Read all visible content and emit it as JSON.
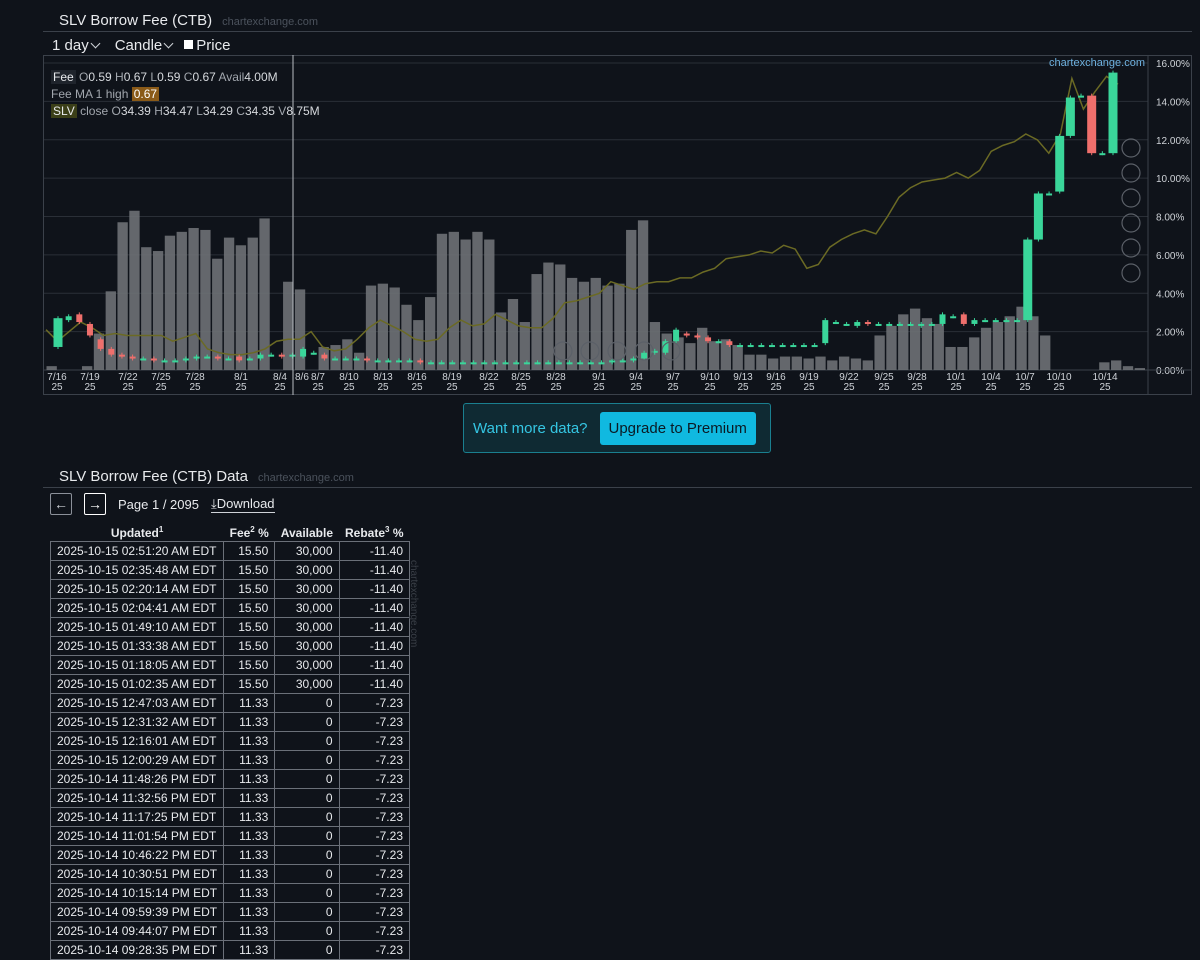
{
  "chart_section": {
    "title": "SLV Borrow Fee (CTB)",
    "source": "chartexchange.com"
  },
  "toolbar": {
    "interval": "1 day",
    "chart_style": "Candle",
    "price_label": "Price"
  },
  "legend": {
    "fee_tag": "Fee",
    "fee_ohlc": {
      "o": "0.59",
      "h": "0.67",
      "l": "0.59",
      "c": "0.67",
      "avail": "4.00M"
    },
    "ma_label": "Fee MA 1 high",
    "ma_value": "0.67",
    "slv_tag": "SLV",
    "slv_close": "close",
    "slv_ohlc": {
      "o": "34.39",
      "h": "34.47",
      "l": "34.29",
      "c": "34.35",
      "v": "8.75M"
    },
    "watermark": "chartexchange.com",
    "crosshair_date": "8/6"
  },
  "premium": {
    "message": "Want more data?",
    "button": "Upgrade to Premium"
  },
  "table_section": {
    "title": "SLV Borrow Fee (CTB) Data",
    "source": "chartexchange.com"
  },
  "pager": {
    "page_text": "Page 1 / 2095",
    "download": "Download",
    "prev_icon": "arrow-left-icon",
    "next_icon": "arrow-right-icon"
  },
  "table": {
    "headers": {
      "updated": "Updated",
      "updated_sup": "1",
      "fee": "Fee",
      "fee_sup": "2",
      "fee_unit": " %",
      "available": "Available",
      "rebate": "Rebate",
      "rebate_sup": "3",
      "rebate_unit": " %"
    },
    "rows": [
      [
        "2025-10-15 02:51:20 AM EDT",
        "15.50",
        "30,000",
        "-11.40"
      ],
      [
        "2025-10-15 02:35:48 AM EDT",
        "15.50",
        "30,000",
        "-11.40"
      ],
      [
        "2025-10-15 02:20:14 AM EDT",
        "15.50",
        "30,000",
        "-11.40"
      ],
      [
        "2025-10-15 02:04:41 AM EDT",
        "15.50",
        "30,000",
        "-11.40"
      ],
      [
        "2025-10-15 01:49:10 AM EDT",
        "15.50",
        "30,000",
        "-11.40"
      ],
      [
        "2025-10-15 01:33:38 AM EDT",
        "15.50",
        "30,000",
        "-11.40"
      ],
      [
        "2025-10-15 01:18:05 AM EDT",
        "15.50",
        "30,000",
        "-11.40"
      ],
      [
        "2025-10-15 01:02:35 AM EDT",
        "15.50",
        "30,000",
        "-11.40"
      ],
      [
        "2025-10-15 12:47:03 AM EDT",
        "11.33",
        "0",
        "-7.23"
      ],
      [
        "2025-10-15 12:31:32 AM EDT",
        "11.33",
        "0",
        "-7.23"
      ],
      [
        "2025-10-15 12:16:01 AM EDT",
        "11.33",
        "0",
        "-7.23"
      ],
      [
        "2025-10-15 12:00:29 AM EDT",
        "11.33",
        "0",
        "-7.23"
      ],
      [
        "2025-10-14 11:48:26 PM EDT",
        "11.33",
        "0",
        "-7.23"
      ],
      [
        "2025-10-14 11:32:56 PM EDT",
        "11.33",
        "0",
        "-7.23"
      ],
      [
        "2025-10-14 11:17:25 PM EDT",
        "11.33",
        "0",
        "-7.23"
      ],
      [
        "2025-10-14 11:01:54 PM EDT",
        "11.33",
        "0",
        "-7.23"
      ],
      [
        "2025-10-14 10:46:22 PM EDT",
        "11.33",
        "0",
        "-7.23"
      ],
      [
        "2025-10-14 10:30:51 PM EDT",
        "11.33",
        "0",
        "-7.23"
      ],
      [
        "2025-10-14 10:15:14 PM EDT",
        "11.33",
        "0",
        "-7.23"
      ],
      [
        "2025-10-14 09:59:39 PM EDT",
        "11.33",
        "0",
        "-7.23"
      ],
      [
        "2025-10-14 09:44:07 PM EDT",
        "11.33",
        "0",
        "-7.23"
      ],
      [
        "2025-10-14 09:28:35 PM EDT",
        "11.33",
        "0",
        "-7.23"
      ]
    ]
  },
  "chart_data": {
    "type": "candlestick",
    "y_ticks": [
      "16.00%",
      "14.00%",
      "12.00%",
      "10.00%",
      "8.00%",
      "6.00%",
      "4.00%",
      "2.00%",
      "0.00%"
    ],
    "ylim": [
      0,
      16
    ],
    "x_ticks": [
      "7/16 25",
      "7/19 25",
      "7/22 25",
      "7/25 25",
      "7/28 25",
      "8/1 25",
      "8/4 25",
      "8/7 25",
      "8/10 25",
      "8/13 25",
      "8/16 25",
      "8/19 25",
      "8/22 25",
      "8/25 25",
      "8/28 25",
      "9/1 25",
      "9/4 25",
      "9/7 25",
      "9/10 25",
      "9/13 25",
      "9/16 25",
      "9/19 25",
      "9/22 25",
      "9/25 25",
      "9/28 25",
      "10/1 25",
      "10/4 25",
      "10/7 25",
      "10/10 25",
      "10/14 25"
    ],
    "volume_bars": [
      0.2,
      0,
      0,
      0.2,
      1.9,
      4.1,
      7.7,
      8.3,
      6.4,
      6.2,
      7.0,
      7.2,
      7.4,
      7.3,
      5.8,
      6.9,
      6.5,
      6.9,
      7.9,
      0,
      4.6,
      4.2,
      0,
      1.2,
      1.3,
      1.6,
      0.9,
      4.4,
      4.5,
      4.3,
      3.4,
      2.6,
      3.8,
      7.1,
      7.2,
      6.8,
      7.2,
      6.8,
      3.0,
      3.7,
      2.5,
      5.0,
      5.6,
      5.5,
      4.8,
      4.6,
      4.8,
      4.4,
      4.5,
      7.3,
      7.8,
      2.5,
      1.9,
      1.7,
      1.4,
      2.2,
      1.5,
      1.6,
      1.3,
      0.8,
      0.8,
      0.6,
      0.7,
      0.7,
      0.6,
      0.7,
      0.5,
      0.7,
      0.6,
      0.5,
      1.8,
      2.3,
      2.9,
      3.2,
      2.7,
      2.4,
      1.2,
      1.2,
      1.7,
      2.2,
      2.5,
      2.8,
      3.3,
      2.8,
      1.8,
      0,
      0,
      0,
      0,
      0.4,
      0.5,
      0.2,
      0.1
    ],
    "fee_candles": [
      {
        "o": 1.2,
        "c": 2.7
      },
      {
        "o": 2.6,
        "c": 2.8
      },
      {
        "o": 2.9,
        "c": 2.5
      },
      {
        "o": 2.4,
        "c": 1.8
      },
      {
        "o": 1.6,
        "c": 1.1
      },
      {
        "o": 1.1,
        "c": 0.8
      },
      {
        "o": 0.8,
        "c": 0.7
      },
      {
        "o": 0.7,
        "c": 0.6
      },
      {
        "o": 0.6,
        "c": 0.6
      },
      {
        "o": 0.6,
        "c": 0.5
      },
      {
        "o": 0.5,
        "c": 0.5
      },
      {
        "o": 0.5,
        "c": 0.5
      },
      {
        "o": 0.5,
        "c": 0.6
      },
      {
        "o": 0.6,
        "c": 0.7
      },
      {
        "o": 0.7,
        "c": 0.7
      },
      {
        "o": 0.7,
        "c": 0.6
      },
      {
        "o": 0.6,
        "c": 0.6
      },
      {
        "o": 0.7,
        "c": 0.5
      },
      {
        "o": 0.6,
        "c": 0.6
      },
      {
        "o": 0.6,
        "c": 0.8
      },
      {
        "o": 0.8,
        "c": 0.8
      },
      {
        "o": 0.8,
        "c": 0.7
      },
      {
        "o": 0.7,
        "c": 0.8
      },
      {
        "o": 0.7,
        "c": 1.1
      },
      {
        "o": 0.9,
        "c": 0.9
      },
      {
        "o": 0.8,
        "c": 0.6
      },
      {
        "o": 0.6,
        "c": 0.6
      },
      {
        "o": 0.6,
        "c": 0.6
      },
      {
        "o": 0.6,
        "c": 0.6
      },
      {
        "o": 0.6,
        "c": 0.5
      },
      {
        "o": 0.5,
        "c": 0.5
      },
      {
        "o": 0.5,
        "c": 0.5
      },
      {
        "o": 0.5,
        "c": 0.5
      },
      {
        "o": 0.5,
        "c": 0.5
      },
      {
        "o": 0.5,
        "c": 0.4
      },
      {
        "o": 0.4,
        "c": 0.4
      },
      {
        "o": 0.4,
        "c": 0.4
      },
      {
        "o": 0.4,
        "c": 0.4
      },
      {
        "o": 0.4,
        "c": 0.4
      },
      {
        "o": 0.4,
        "c": 0.4
      },
      {
        "o": 0.4,
        "c": 0.4
      },
      {
        "o": 0.4,
        "c": 0.4
      },
      {
        "o": 0.4,
        "c": 0.4
      },
      {
        "o": 0.4,
        "c": 0.4
      },
      {
        "o": 0.4,
        "c": 0.4
      },
      {
        "o": 0.4,
        "c": 0.4
      },
      {
        "o": 0.4,
        "c": 0.4
      },
      {
        "o": 0.4,
        "c": 0.4
      },
      {
        "o": 0.4,
        "c": 0.4
      },
      {
        "o": 0.4,
        "c": 0.4
      },
      {
        "o": 0.4,
        "c": 0.4
      },
      {
        "o": 0.4,
        "c": 0.4
      },
      {
        "o": 0.4,
        "c": 0.5
      },
      {
        "o": 0.5,
        "c": 0.5
      },
      {
        "o": 0.5,
        "c": 0.6
      },
      {
        "o": 0.6,
        "c": 0.9
      },
      {
        "o": 0.9,
        "c": 1.0
      },
      {
        "o": 0.9,
        "c": 1.5
      },
      {
        "o": 1.5,
        "c": 2.1
      },
      {
        "o": 1.9,
        "c": 1.8
      },
      {
        "o": 1.8,
        "c": 1.7
      },
      {
        "o": 1.7,
        "c": 1.5
      },
      {
        "o": 1.5,
        "c": 1.5
      },
      {
        "o": 1.5,
        "c": 1.3
      },
      {
        "o": 1.3,
        "c": 1.3
      },
      {
        "o": 1.3,
        "c": 1.3
      },
      {
        "o": 1.3,
        "c": 1.3
      },
      {
        "o": 1.3,
        "c": 1.3
      },
      {
        "o": 1.3,
        "c": 1.3
      },
      {
        "o": 1.3,
        "c": 1.3
      },
      {
        "o": 1.3,
        "c": 1.3
      },
      {
        "o": 1.3,
        "c": 1.3
      },
      {
        "o": 1.4,
        "c": 2.6
      },
      {
        "o": 2.5,
        "c": 2.5
      },
      {
        "o": 2.4,
        "c": 2.4
      },
      {
        "o": 2.3,
        "c": 2.5
      },
      {
        "o": 2.5,
        "c": 2.4
      },
      {
        "o": 2.4,
        "c": 2.4
      },
      {
        "o": 2.4,
        "c": 2.4
      },
      {
        "o": 2.4,
        "c": 2.4
      },
      {
        "o": 2.4,
        "c": 2.4
      },
      {
        "o": 2.3,
        "c": 2.4
      },
      {
        "o": 2.4,
        "c": 2.4
      },
      {
        "o": 2.4,
        "c": 2.9
      },
      {
        "o": 2.8,
        "c": 2.8
      },
      {
        "o": 2.9,
        "c": 2.4
      },
      {
        "o": 2.4,
        "c": 2.6
      },
      {
        "o": 2.6,
        "c": 2.6
      },
      {
        "o": 2.6,
        "c": 2.6
      },
      {
        "o": 2.6,
        "c": 2.6
      },
      {
        "o": 2.6,
        "c": 2.6
      },
      {
        "o": 2.6,
        "c": 6.8
      },
      {
        "o": 6.8,
        "c": 9.2
      },
      {
        "o": 9.2,
        "c": 9.2
      },
      {
        "o": 9.3,
        "c": 12.2
      },
      {
        "o": 12.2,
        "c": 14.2
      },
      {
        "o": 14.3,
        "c": 14.3
      },
      {
        "o": 14.3,
        "c": 11.3
      },
      {
        "o": 11.3,
        "c": 11.3
      },
      {
        "o": 11.3,
        "c": 15.5
      }
    ],
    "price_line": [
      2.1,
      1.5,
      2.0,
      2.5,
      2.2,
      1.8,
      1.9,
      1.8,
      1.8,
      1.8,
      1.8,
      1.5,
      1.7,
      1.9,
      1.1,
      0.9,
      0.8,
      0.8,
      0.9,
      1.1,
      1.5,
      1.6,
      1.6,
      2.0,
      1.2,
      1.0,
      1.1,
      1.6,
      2.2,
      2.6,
      2.3,
      2.0,
      1.6,
      1.5,
      1.6,
      2.2,
      2.6,
      2.3,
      2.4,
      2.9,
      2.6,
      2.3,
      2.2,
      2.2,
      2.7,
      3.5,
      3.6,
      3.8,
      4.0,
      4.6,
      4.4,
      4.2,
      4.5,
      4.6,
      4.6,
      4.8,
      4.8,
      5.1,
      5.3,
      5.8,
      5.9,
      6.0,
      6.2,
      6.1,
      6.5,
      6.3,
      5.3,
      5.5,
      6.4,
      6.8,
      7.1,
      7.3,
      7.1,
      8.0,
      9.0,
      9.5,
      9.8,
      9.9,
      10.0,
      10.3,
      10.0,
      10.4,
      11.4,
      11.7,
      11.9,
      12.3,
      12.0,
      11.3,
      12.3,
      15.2,
      13.6,
      14.5,
      15.3,
      14.9
    ]
  }
}
